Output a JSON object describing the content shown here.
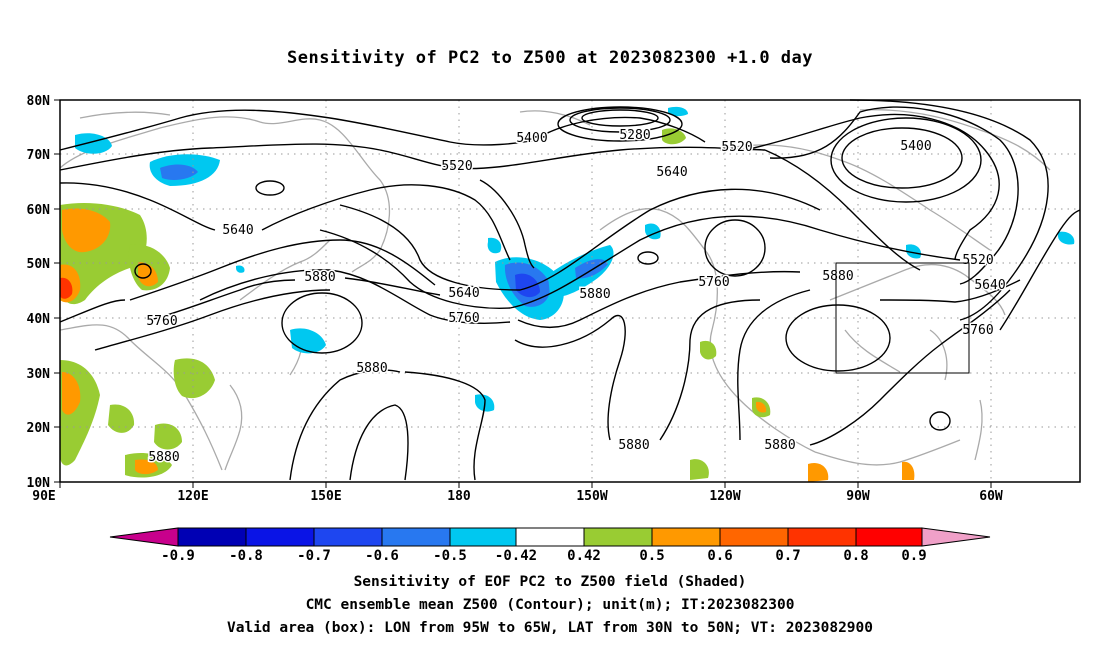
{
  "title": "Sensitivity of PC2 to Z500 at 2023082300 +1.0 day",
  "map": {
    "lat_ticks": [
      "80N",
      "70N",
      "60N",
      "50N",
      "40N",
      "30N",
      "20N",
      "10N"
    ],
    "lon_ticks": [
      "90E",
      "120E",
      "150E",
      "180",
      "150W",
      "120W",
      "90W",
      "60W"
    ],
    "contour_labels": [
      "5400",
      "5280",
      "5520",
      "5400",
      "5520",
      "5640",
      "5640",
      "5880",
      "5640",
      "5760",
      "5880",
      "5760",
      "5880",
      "5520",
      "5640",
      "5760",
      "5760",
      "5880",
      "5880",
      "5880",
      "5880"
    ],
    "valid_box": {
      "lon_range": [
        "95W",
        "65W"
      ],
      "lat_range": [
        "30N",
        "50N"
      ]
    }
  },
  "colorbar": {
    "labels": [
      "-0.9",
      "-0.8",
      "-0.7",
      "-0.6",
      "-0.5",
      "-0.42",
      "0.42",
      "0.5",
      "0.6",
      "0.7",
      "0.8",
      "0.9"
    ],
    "colors": [
      "#c8008c",
      "#0000b4",
      "#0a14e6",
      "#1e46f0",
      "#2878f0",
      "#32aaf0",
      "#00c8f0",
      "#ffffff",
      "#99cc33",
      "#ff9900",
      "#ff6600",
      "#ff3300",
      "#ff0000",
      "#f0a0c8"
    ]
  },
  "captions": {
    "line1": "Sensitivity of EOF PC2 to Z500 field (Shaded)",
    "line2": "CMC ensemble mean Z500 (Contour); unit(m); IT:2023082300",
    "line3": "Valid area (box): LON from 95W to 65W, LAT from 30N to 50N; VT: 2023082900"
  }
}
